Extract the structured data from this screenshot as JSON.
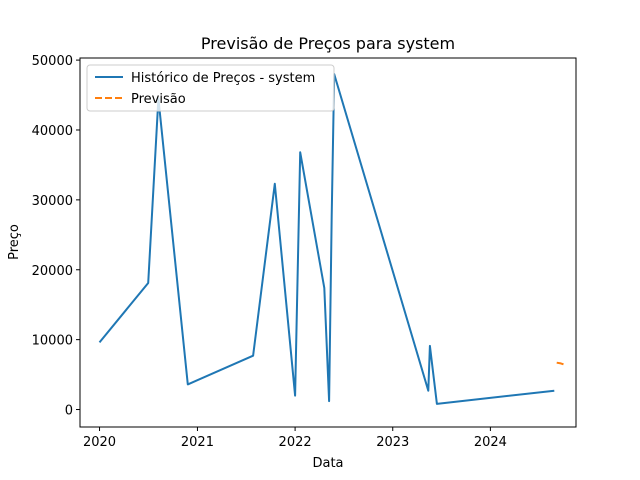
{
  "chart_data": {
    "type": "line",
    "title": "Previsão de Preços para system",
    "xlabel": "Data",
    "ylabel": "Preço",
    "xlim": [
      "2019-10-20",
      "2024-11-16"
    ],
    "ylim": [
      -2500,
      50300
    ],
    "x_ticks": [
      "2020",
      "2021",
      "2022",
      "2023",
      "2024"
    ],
    "y_ticks": [
      0,
      10000,
      20000,
      30000,
      40000,
      50000
    ],
    "grid": false,
    "legend_position": "upper-left",
    "series": [
      {
        "name": "Histórico de Preços - system",
        "style": "solid",
        "color": "#1f77b4",
        "points": [
          {
            "x": "2020-01-01",
            "y": 9600
          },
          {
            "x": "2020-07-01",
            "y": 18100
          },
          {
            "x": "2020-08-08",
            "y": 44500
          },
          {
            "x": "2020-11-26",
            "y": 3600
          },
          {
            "x": "2021-07-28",
            "y": 7700
          },
          {
            "x": "2021-10-17",
            "y": 32300
          },
          {
            "x": "2022-01-01",
            "y": 2000
          },
          {
            "x": "2022-01-20",
            "y": 36800
          },
          {
            "x": "2022-04-20",
            "y": 17400
          },
          {
            "x": "2022-05-08",
            "y": 1200
          },
          {
            "x": "2022-05-18",
            "y": 27700
          },
          {
            "x": "2022-05-27",
            "y": 48000
          },
          {
            "x": "2023-05-14",
            "y": 2700
          },
          {
            "x": "2023-05-20",
            "y": 9100
          },
          {
            "x": "2023-06-15",
            "y": 800
          },
          {
            "x": "2024-08-27",
            "y": 2700
          }
        ]
      },
      {
        "name": "Previsão",
        "style": "dashed",
        "color": "#ff7f0e",
        "points": [
          {
            "x": "2024-09-05",
            "y": 6700
          },
          {
            "x": "2024-09-20",
            "y": 6600
          },
          {
            "x": "2024-10-05",
            "y": 6400
          }
        ]
      }
    ]
  }
}
